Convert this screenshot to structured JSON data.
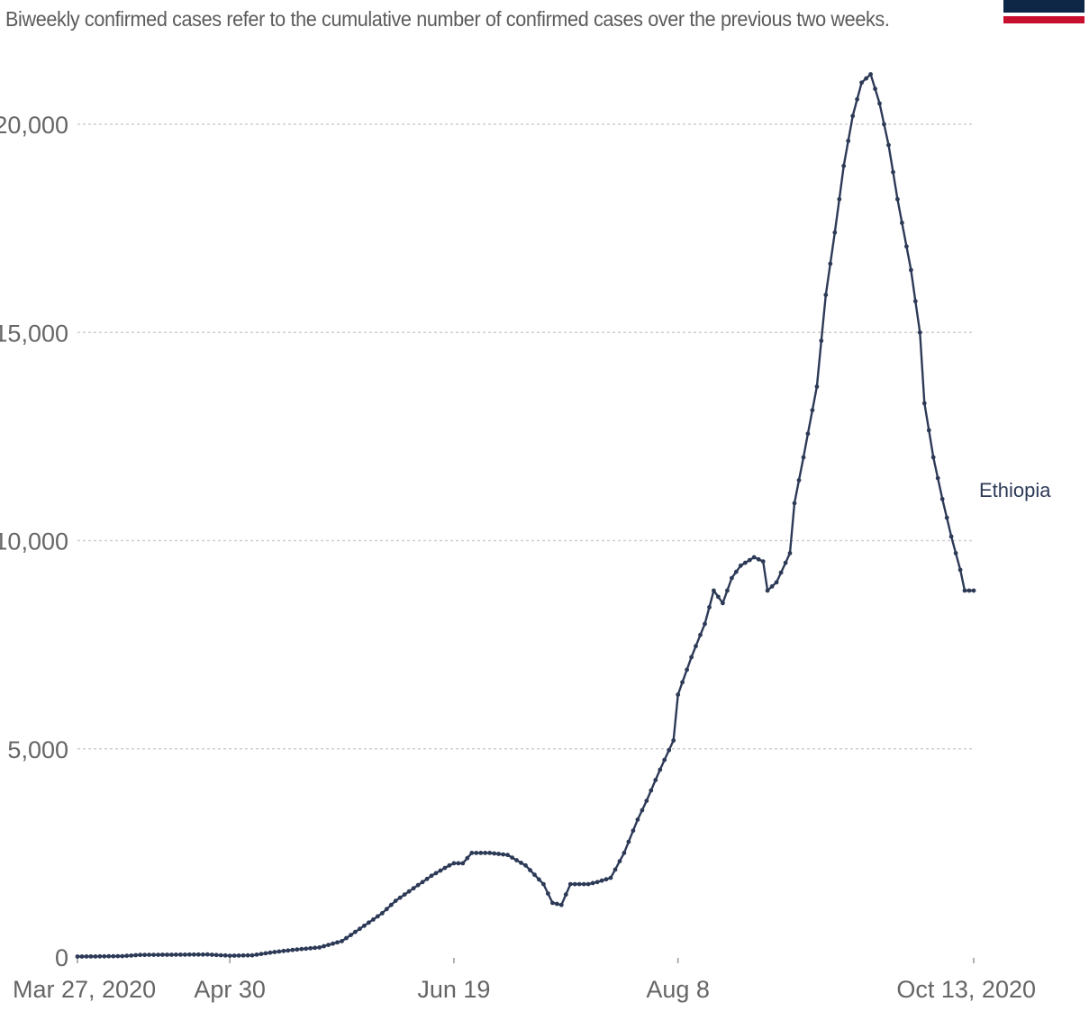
{
  "subtitle": "Biweekly confirmed cases refer to the cumulative number of confirmed cases over the previous two weeks.",
  "colors": {
    "line": "#2d3a57",
    "grid": "#cfcfcf",
    "axis_text": "#666666",
    "logo_navy": "#0f2747",
    "logo_red": "#c8102e"
  },
  "chart_data": {
    "type": "line",
    "title": "",
    "xlabel": "",
    "ylabel": "",
    "x_start": "2020-03-27",
    "x_end": "2020-10-13",
    "ylim": [
      0,
      21000
    ],
    "y_ticks": [
      {
        "value": 0,
        "label": "0"
      },
      {
        "value": 5000,
        "label": "5,000"
      },
      {
        "value": 10000,
        "label": "10,000"
      },
      {
        "value": 15000,
        "label": "15,000"
      },
      {
        "value": 20000,
        "label": "20,000"
      }
    ],
    "x_ticks": [
      {
        "date": "2020-03-27",
        "label": "Mar 27, 2020"
      },
      {
        "date": "2020-04-30",
        "label": "Apr 30"
      },
      {
        "date": "2020-06-19",
        "label": "Jun 19"
      },
      {
        "date": "2020-08-08",
        "label": "Aug 8"
      },
      {
        "date": "2020-10-13",
        "label": "Oct 13, 2020"
      }
    ],
    "grid": true,
    "series": [
      {
        "name": "Ethiopia",
        "points": [
          [
            "2020-03-27",
            10
          ],
          [
            "2020-04-06",
            20
          ],
          [
            "2020-04-10",
            50
          ],
          [
            "2020-04-25",
            60
          ],
          [
            "2020-04-30",
            30
          ],
          [
            "2020-05-05",
            40
          ],
          [
            "2020-05-10",
            120
          ],
          [
            "2020-05-15",
            180
          ],
          [
            "2020-05-20",
            230
          ],
          [
            "2020-05-25",
            380
          ],
          [
            "2020-05-30",
            750
          ],
          [
            "2020-06-03",
            1050
          ],
          [
            "2020-06-06",
            1350
          ],
          [
            "2020-06-10",
            1650
          ],
          [
            "2020-06-14",
            1950
          ],
          [
            "2020-06-18",
            2200
          ],
          [
            "2020-06-19",
            2250
          ],
          [
            "2020-06-21",
            2250
          ],
          [
            "2020-06-23",
            2500
          ],
          [
            "2020-06-27",
            2500
          ],
          [
            "2020-07-01",
            2450
          ],
          [
            "2020-07-05",
            2200
          ],
          [
            "2020-07-09",
            1750
          ],
          [
            "2020-07-11",
            1300
          ],
          [
            "2020-07-13",
            1250
          ],
          [
            "2020-07-15",
            1750
          ],
          [
            "2020-07-19",
            1750
          ],
          [
            "2020-07-21",
            1800
          ],
          [
            "2020-07-24",
            1900
          ],
          [
            "2020-07-27",
            2500
          ],
          [
            "2020-07-30",
            3300
          ],
          [
            "2020-08-01",
            3750
          ],
          [
            "2020-08-04",
            4500
          ],
          [
            "2020-08-07",
            5200
          ],
          [
            "2020-08-08",
            6300
          ],
          [
            "2020-08-11",
            7200
          ],
          [
            "2020-08-14",
            8000
          ],
          [
            "2020-08-16",
            8800
          ],
          [
            "2020-08-18",
            8500
          ],
          [
            "2020-08-20",
            9100
          ],
          [
            "2020-08-22",
            9400
          ],
          [
            "2020-08-25",
            9600
          ],
          [
            "2020-08-27",
            9500
          ],
          [
            "2020-08-28",
            8800
          ],
          [
            "2020-08-30",
            9000
          ],
          [
            "2020-09-02",
            9700
          ],
          [
            "2020-09-03",
            10900
          ],
          [
            "2020-09-05",
            12000
          ],
          [
            "2020-09-08",
            13700
          ],
          [
            "2020-09-10",
            15900
          ],
          [
            "2020-09-12",
            17400
          ],
          [
            "2020-09-14",
            19000
          ],
          [
            "2020-09-16",
            20200
          ],
          [
            "2020-09-18",
            21000
          ],
          [
            "2020-09-20",
            21200
          ],
          [
            "2020-09-22",
            20500
          ],
          [
            "2020-09-24",
            19500
          ],
          [
            "2020-09-26",
            18200
          ],
          [
            "2020-09-29",
            16500
          ],
          [
            "2020-10-01",
            15000
          ],
          [
            "2020-10-02",
            13300
          ],
          [
            "2020-10-04",
            12000
          ],
          [
            "2020-10-06",
            11000
          ],
          [
            "2020-10-08",
            10100
          ],
          [
            "2020-10-10",
            9300
          ],
          [
            "2020-10-11",
            8800
          ],
          [
            "2020-10-13",
            8800
          ]
        ]
      }
    ]
  }
}
